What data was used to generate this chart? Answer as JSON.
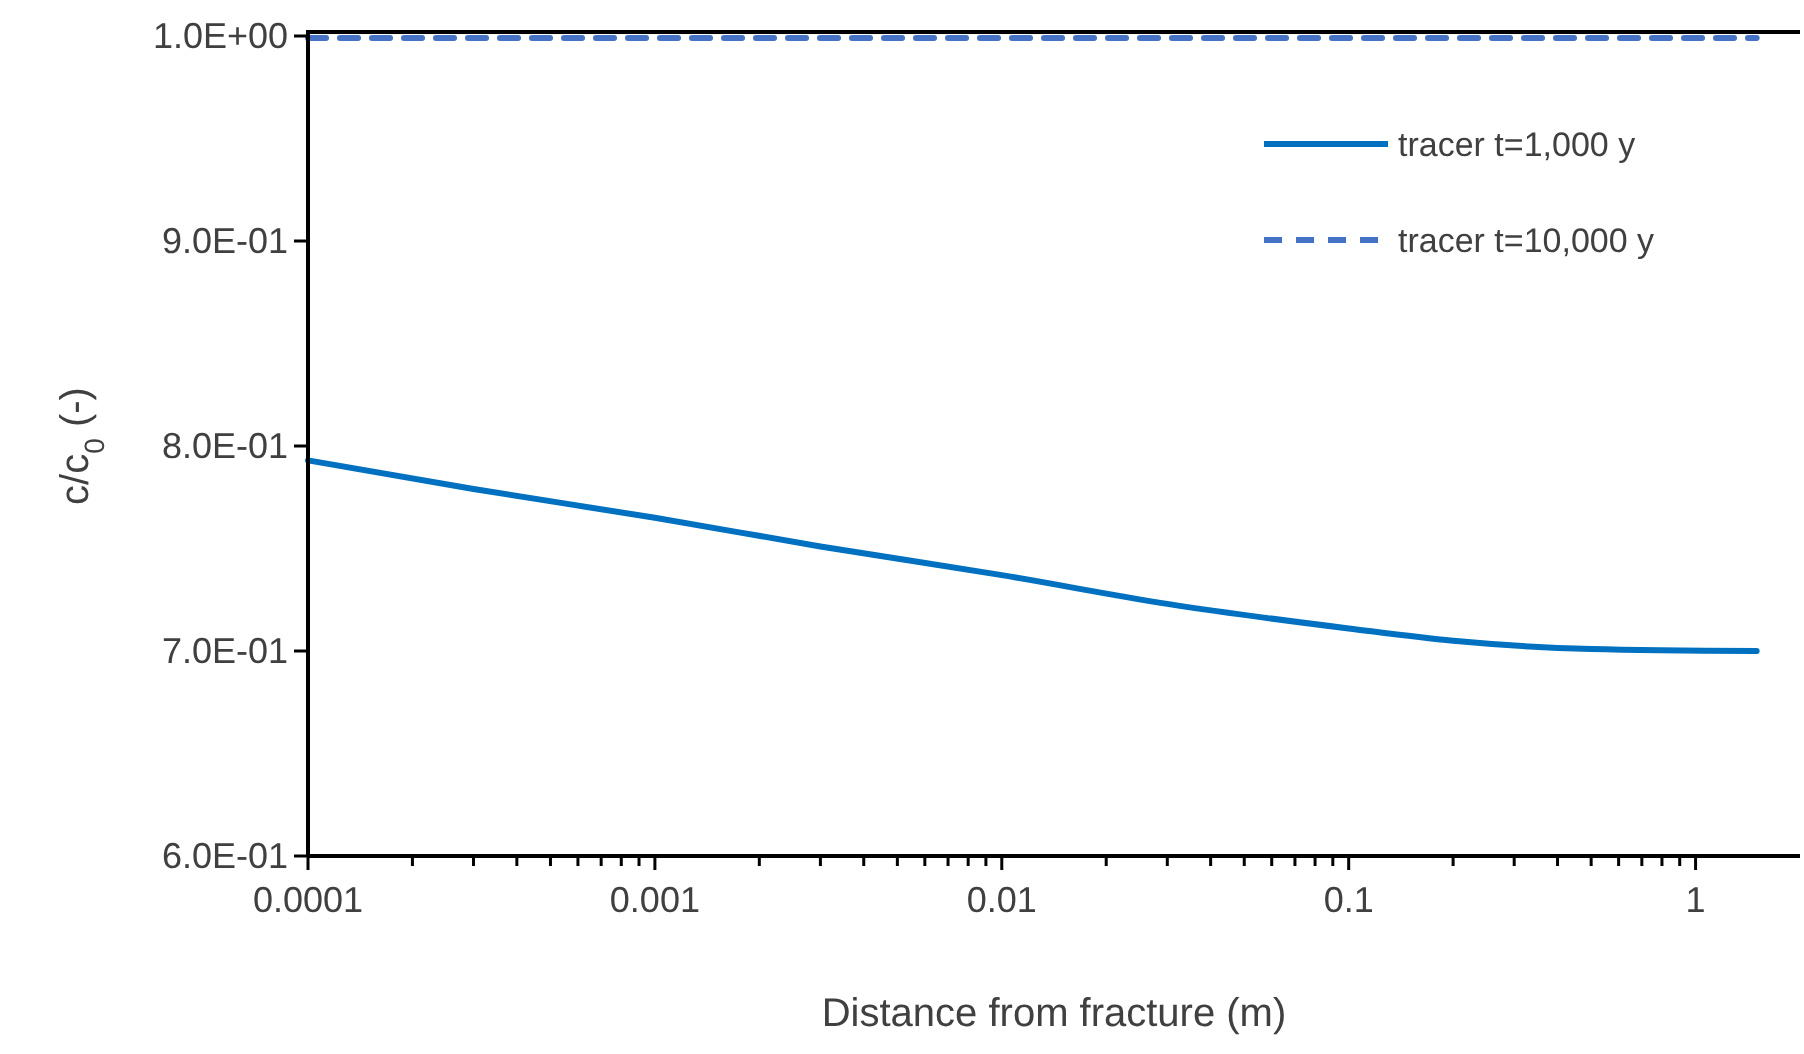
{
  "chart_data": {
    "type": "line",
    "xlabel": "Distance from fracture (m)",
    "ylabel": "c/c$_{0}$  (-)",
    "log": "x",
    "grid": false,
    "legend": "top right",
    "marker": "none",
    "xlim": [
      0.0001,
      2
    ],
    "ylim": [
      0.6,
      1.0
    ],
    "xticks": [
      {
        "value": 0.0001,
        "label": "0.0001"
      },
      {
        "value": 0.0002,
        "label": null
      },
      {
        "value": 0.0003,
        "label": null
      },
      {
        "value": 0.0004,
        "label": null
      },
      {
        "value": 0.0005,
        "label": null
      },
      {
        "value": 0.0006,
        "label": null
      },
      {
        "value": 0.0007,
        "label": null
      },
      {
        "value": 0.0008,
        "label": null
      },
      {
        "value": 0.0009,
        "label": null
      },
      {
        "value": 0.001,
        "label": "0.001"
      },
      {
        "value": 0.002,
        "label": null
      },
      {
        "value": 0.003,
        "label": null
      },
      {
        "value": 0.004,
        "label": null
      },
      {
        "value": 0.005,
        "label": null
      },
      {
        "value": 0.006,
        "label": null
      },
      {
        "value": 0.007,
        "label": null
      },
      {
        "value": 0.008,
        "label": null
      },
      {
        "value": 0.009,
        "label": null
      },
      {
        "value": 0.01,
        "label": "0.01"
      },
      {
        "value": 0.02,
        "label": null
      },
      {
        "value": 0.03,
        "label": null
      },
      {
        "value": 0.04,
        "label": null
      },
      {
        "value": 0.05,
        "label": null
      },
      {
        "value": 0.06,
        "label": null
      },
      {
        "value": 0.07,
        "label": null
      },
      {
        "value": 0.08,
        "label": null
      },
      {
        "value": 0.09,
        "label": null
      },
      {
        "value": 0.1,
        "label": "0.1"
      },
      {
        "value": 0.2,
        "label": null
      },
      {
        "value": 0.3,
        "label": null
      },
      {
        "value": 0.4,
        "label": null
      },
      {
        "value": 0.5,
        "label": null
      },
      {
        "value": 0.6,
        "label": null
      },
      {
        "value": 0.7,
        "label": null
      },
      {
        "value": 0.8,
        "label": null
      },
      {
        "value": 0.9,
        "label": null
      },
      {
        "value": 1,
        "label": "1"
      }
    ],
    "yticks": [
      {
        "value": 0.6,
        "label": "6.0E-01"
      },
      {
        "value": 0.7,
        "label": "7.0E-01"
      },
      {
        "value": 0.8,
        "label": "8.0E-01"
      },
      {
        "value": 0.9,
        "label": "9.0E-01"
      },
      {
        "value": 1.0,
        "label": "1.0E+00"
      }
    ],
    "series": [
      {
        "name": "tracer t=1,000 y",
        "color": "#0070c0",
        "line_style": "solid",
        "x": [
          0.0001,
          0.0003,
          0.001,
          0.003,
          0.01,
          0.03,
          0.1,
          0.2,
          0.5,
          1.5
        ],
        "values": [
          0.793,
          0.779,
          0.765,
          0.751,
          0.737,
          0.723,
          0.711,
          0.705,
          0.701,
          0.7
        ]
      },
      {
        "name": "tracer t=10,000 y",
        "color": "#4472c4",
        "line_style": "dashed",
        "x": [
          0.0001,
          1.5
        ],
        "values": [
          0.999,
          0.999
        ]
      }
    ]
  }
}
